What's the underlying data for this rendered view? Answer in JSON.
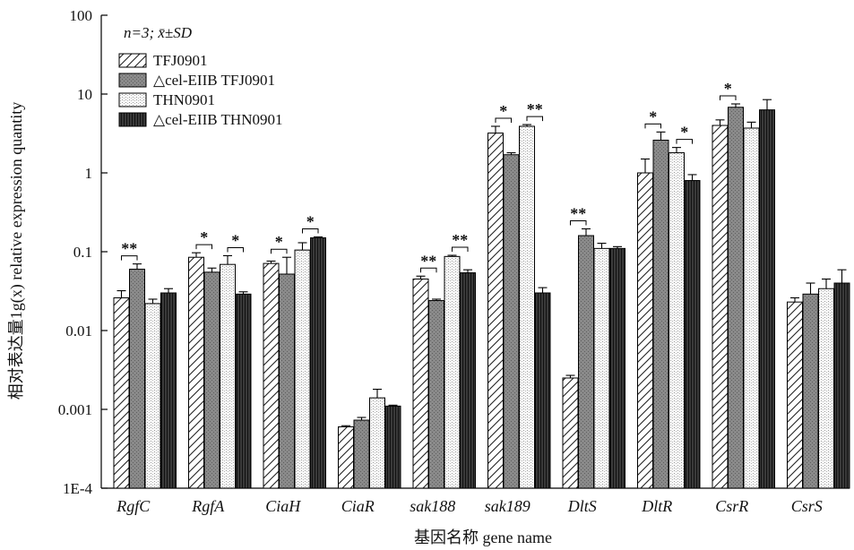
{
  "chart_data": {
    "type": "bar",
    "scale": "log",
    "ylim": [
      0.0001,
      100
    ],
    "yticks": [
      "1E-4",
      "0.001",
      "0.01",
      "0.1",
      "1",
      "10",
      "100"
    ],
    "xlabel": "基因名称 gene name",
    "ylabel": "相对表达量1g(x) relative expression quantity",
    "annotation": "n=3; x̄±SD",
    "legend_position": "top-left",
    "categories": [
      "RgfC",
      "RgfA",
      "CiaH",
      "CiaR",
      "sak188",
      "sak189",
      "DltS",
      "DltR",
      "CsrR",
      "CsrS"
    ],
    "series": [
      {
        "name": "TFJ0901",
        "values": [
          0.026,
          0.085,
          0.071,
          0.0006,
          0.045,
          3.2,
          0.0025,
          1.0,
          4.0,
          0.023
        ],
        "errors": [
          0.006,
          0.012,
          0.005,
          2e-05,
          0.004,
          0.7,
          0.0002,
          0.5,
          0.7,
          0.003
        ]
      },
      {
        "name": "△cel-EIIB TFJ0901",
        "values": [
          0.06,
          0.055,
          0.052,
          0.00073,
          0.024,
          1.7,
          0.16,
          2.6,
          6.8,
          0.029
        ],
        "errors": [
          0.01,
          0.007,
          0.033,
          6e-05,
          0.001,
          0.1,
          0.035,
          0.7,
          0.7,
          0.011
        ]
      },
      {
        "name": "THN0901",
        "values": [
          0.022,
          0.069,
          0.105,
          0.0014,
          0.087,
          3.9,
          0.11,
          1.8,
          3.7,
          0.034
        ],
        "errors": [
          0.003,
          0.02,
          0.025,
          0.0004,
          0.003,
          0.2,
          0.018,
          0.3,
          0.7,
          0.011
        ]
      },
      {
        "name": "△cel-EIIB THN0901",
        "values": [
          0.03,
          0.029,
          0.15,
          0.0011,
          0.054,
          0.03,
          0.11,
          0.8,
          6.3,
          0.04
        ],
        "errors": [
          0.004,
          0.002,
          0.004,
          3e-05,
          0.005,
          0.005,
          0.006,
          0.15,
          2.2,
          0.019
        ]
      }
    ],
    "significance": [
      {
        "category": "RgfC",
        "pair": [
          0,
          1
        ],
        "label": "**"
      },
      {
        "category": "RgfA",
        "pair": [
          0,
          1
        ],
        "label": "*"
      },
      {
        "category": "RgfA",
        "pair": [
          2,
          3
        ],
        "label": "*"
      },
      {
        "category": "CiaH",
        "pair": [
          0,
          1
        ],
        "label": "*"
      },
      {
        "category": "CiaH",
        "pair": [
          2,
          3
        ],
        "label": "*"
      },
      {
        "category": "sak188",
        "pair": [
          0,
          1
        ],
        "label": "**"
      },
      {
        "category": "sak188",
        "pair": [
          2,
          3
        ],
        "label": "**"
      },
      {
        "category": "sak189",
        "pair": [
          0,
          1
        ],
        "label": "*"
      },
      {
        "category": "sak189",
        "pair": [
          2,
          3
        ],
        "label": "**"
      },
      {
        "category": "DltS",
        "pair": [
          0,
          1
        ],
        "label": "**"
      },
      {
        "category": "DltR",
        "pair": [
          0,
          1
        ],
        "label": "*"
      },
      {
        "category": "DltR",
        "pair": [
          2,
          3
        ],
        "label": "*"
      },
      {
        "category": "CsrR",
        "pair": [
          0,
          1
        ],
        "label": "*"
      }
    ]
  }
}
